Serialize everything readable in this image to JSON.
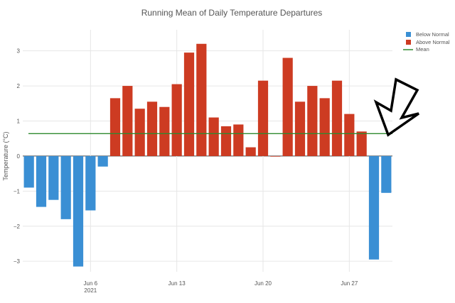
{
  "chart_data": {
    "type": "bar",
    "title": "Running Mean of Daily Temperature Departures",
    "ylabel": "Temperature (°C)",
    "xlabel": "",
    "ylim": [
      -3.3,
      3.6
    ],
    "yticks": [
      -3,
      -2,
      -1,
      0,
      1,
      2,
      3
    ],
    "ytick_labels": [
      "−3",
      "−2",
      "−1",
      "0",
      "1",
      "2",
      "3"
    ],
    "x_start_day": 1,
    "x_end_day": 30,
    "x_range_days": [
      0.5,
      30.5
    ],
    "xticks": [
      {
        "day": 6,
        "label": "Jun 6",
        "sublabel": "2021"
      },
      {
        "day": 13,
        "label": "Jun 13"
      },
      {
        "day": 20,
        "label": "Jun 20"
      },
      {
        "day": 27,
        "label": "Jun 27"
      }
    ],
    "days": [
      1,
      2,
      3,
      4,
      5,
      6,
      7,
      8,
      9,
      10,
      11,
      12,
      13,
      14,
      15,
      16,
      17,
      18,
      19,
      20,
      21,
      22,
      23,
      24,
      25,
      26,
      27,
      28,
      29,
      30
    ],
    "values": [
      -0.9,
      -1.45,
      -1.25,
      -1.8,
      -3.15,
      -1.55,
      -0.3,
      1.65,
      2.0,
      1.35,
      1.55,
      1.4,
      2.05,
      2.95,
      3.2,
      1.1,
      0.85,
      0.9,
      0.25,
      2.15,
      0.0,
      2.8,
      1.55,
      2.0,
      1.65,
      2.15,
      1.2,
      0.7,
      -2.95,
      -1.05
    ],
    "series": [
      {
        "name": "Below Normal",
        "color": "#3a8fd4"
      },
      {
        "name": "Above Normal",
        "color": "#cd3b22"
      },
      {
        "name": "Mean",
        "color": "#2f8a2f",
        "value": 0.64
      }
    ],
    "legend_position": "top-right",
    "grid": true
  },
  "annotation": {
    "shape": "hollow-arrow",
    "points_to": "last bars"
  }
}
